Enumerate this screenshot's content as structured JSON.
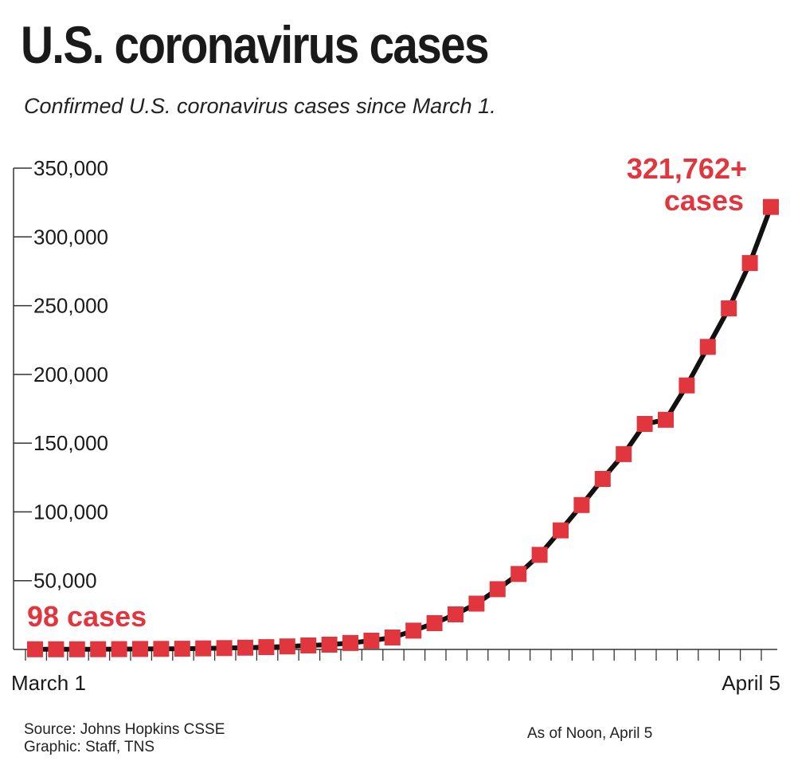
{
  "header": {
    "title": "U.S. coronavirus cases",
    "subtitle": "Confirmed U.S. coronavirus cases since March 1."
  },
  "footer": {
    "source": "Source: Johns Hopkins CSSE",
    "graphic": "Graphic: Staff, TNS",
    "as_of": "As of Noon, April 5"
  },
  "colors": {
    "marker": "#e2363e",
    "line": "#111111",
    "text": "#1a1a1a"
  },
  "chart_data": {
    "type": "line",
    "title": "U.S. coronavirus cases",
    "subtitle": "Confirmed U.S. coronavirus cases since March 1.",
    "xlabel": "",
    "ylabel": "",
    "ylim": [
      0,
      350000
    ],
    "yticks": [
      50000,
      100000,
      150000,
      200000,
      250000,
      300000,
      350000
    ],
    "ytick_labels": [
      "50,000",
      "100,000",
      "150,000",
      "200,000",
      "250,000",
      "300,000",
      "350,000"
    ],
    "x_start_label": "March 1",
    "x_end_label": "April 5",
    "x": [
      "March 1",
      "March 2",
      "March 3",
      "March 4",
      "March 5",
      "March 6",
      "March 7",
      "March 8",
      "March 9",
      "March 10",
      "March 11",
      "March 12",
      "March 13",
      "March 14",
      "March 15",
      "March 16",
      "March 17",
      "March 18",
      "March 19",
      "March 20",
      "March 21",
      "March 22",
      "March 23",
      "March 24",
      "March 25",
      "March 26",
      "March 27",
      "March 28",
      "March 29",
      "March 30",
      "March 31",
      "April 1",
      "April 2",
      "April 3",
      "April 4",
      "April 5"
    ],
    "series": [
      {
        "values": [
          98,
          100,
          120,
          150,
          220,
          330,
          430,
          550,
          750,
          1000,
          1300,
          1700,
          2200,
          2900,
          3500,
          4700,
          6400,
          8700,
          13700,
          19100,
          25500,
          33300,
          43800,
          54900,
          68800,
          86600,
          105000,
          124000,
          142000,
          164000,
          167000,
          192000,
          220000,
          248000,
          281000,
          321762
        ]
      }
    ],
    "annotations": {
      "start": "98 cases",
      "end_line1": "321,762+",
      "end_line2": "cases"
    },
    "grid": false
  }
}
